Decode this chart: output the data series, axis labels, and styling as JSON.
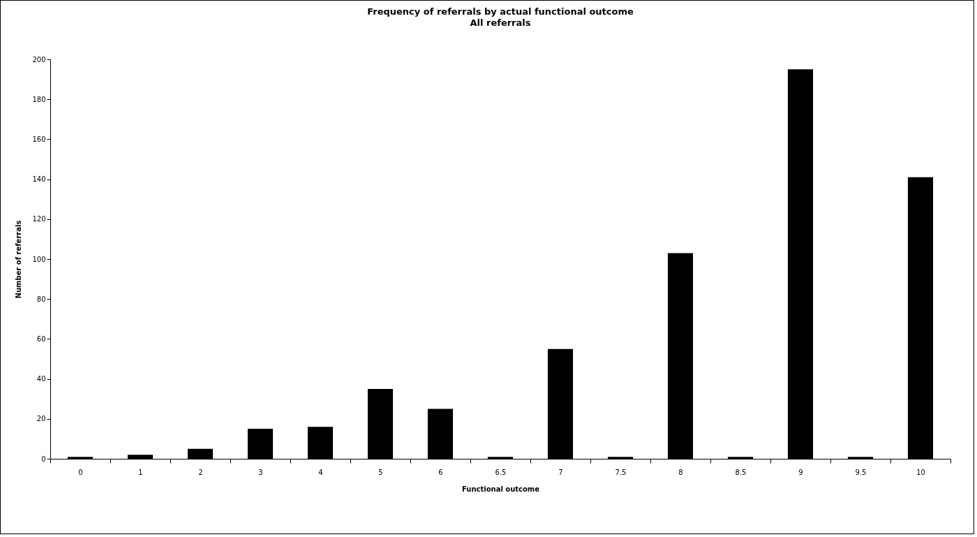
{
  "chart_data": {
    "type": "bar",
    "title": "Frequency of referrals by actual functional outcome",
    "subtitle": "All referrals",
    "xlabel": "Functional outcome",
    "ylabel": "Number of referrals",
    "categories": [
      "0",
      "1",
      "2",
      "3",
      "4",
      "5",
      "6",
      "6.5",
      "7",
      "7.5",
      "8",
      "8.5",
      "9",
      "9.5",
      "10"
    ],
    "values": [
      1,
      2,
      5,
      15,
      16,
      35,
      25,
      1,
      55,
      1,
      103,
      1,
      195,
      1,
      141
    ],
    "color": "#000000",
    "ylim": [
      0,
      200
    ],
    "yticks": [
      0,
      20,
      40,
      60,
      80,
      100,
      120,
      140,
      160,
      180,
      200
    ],
    "grid": false
  }
}
